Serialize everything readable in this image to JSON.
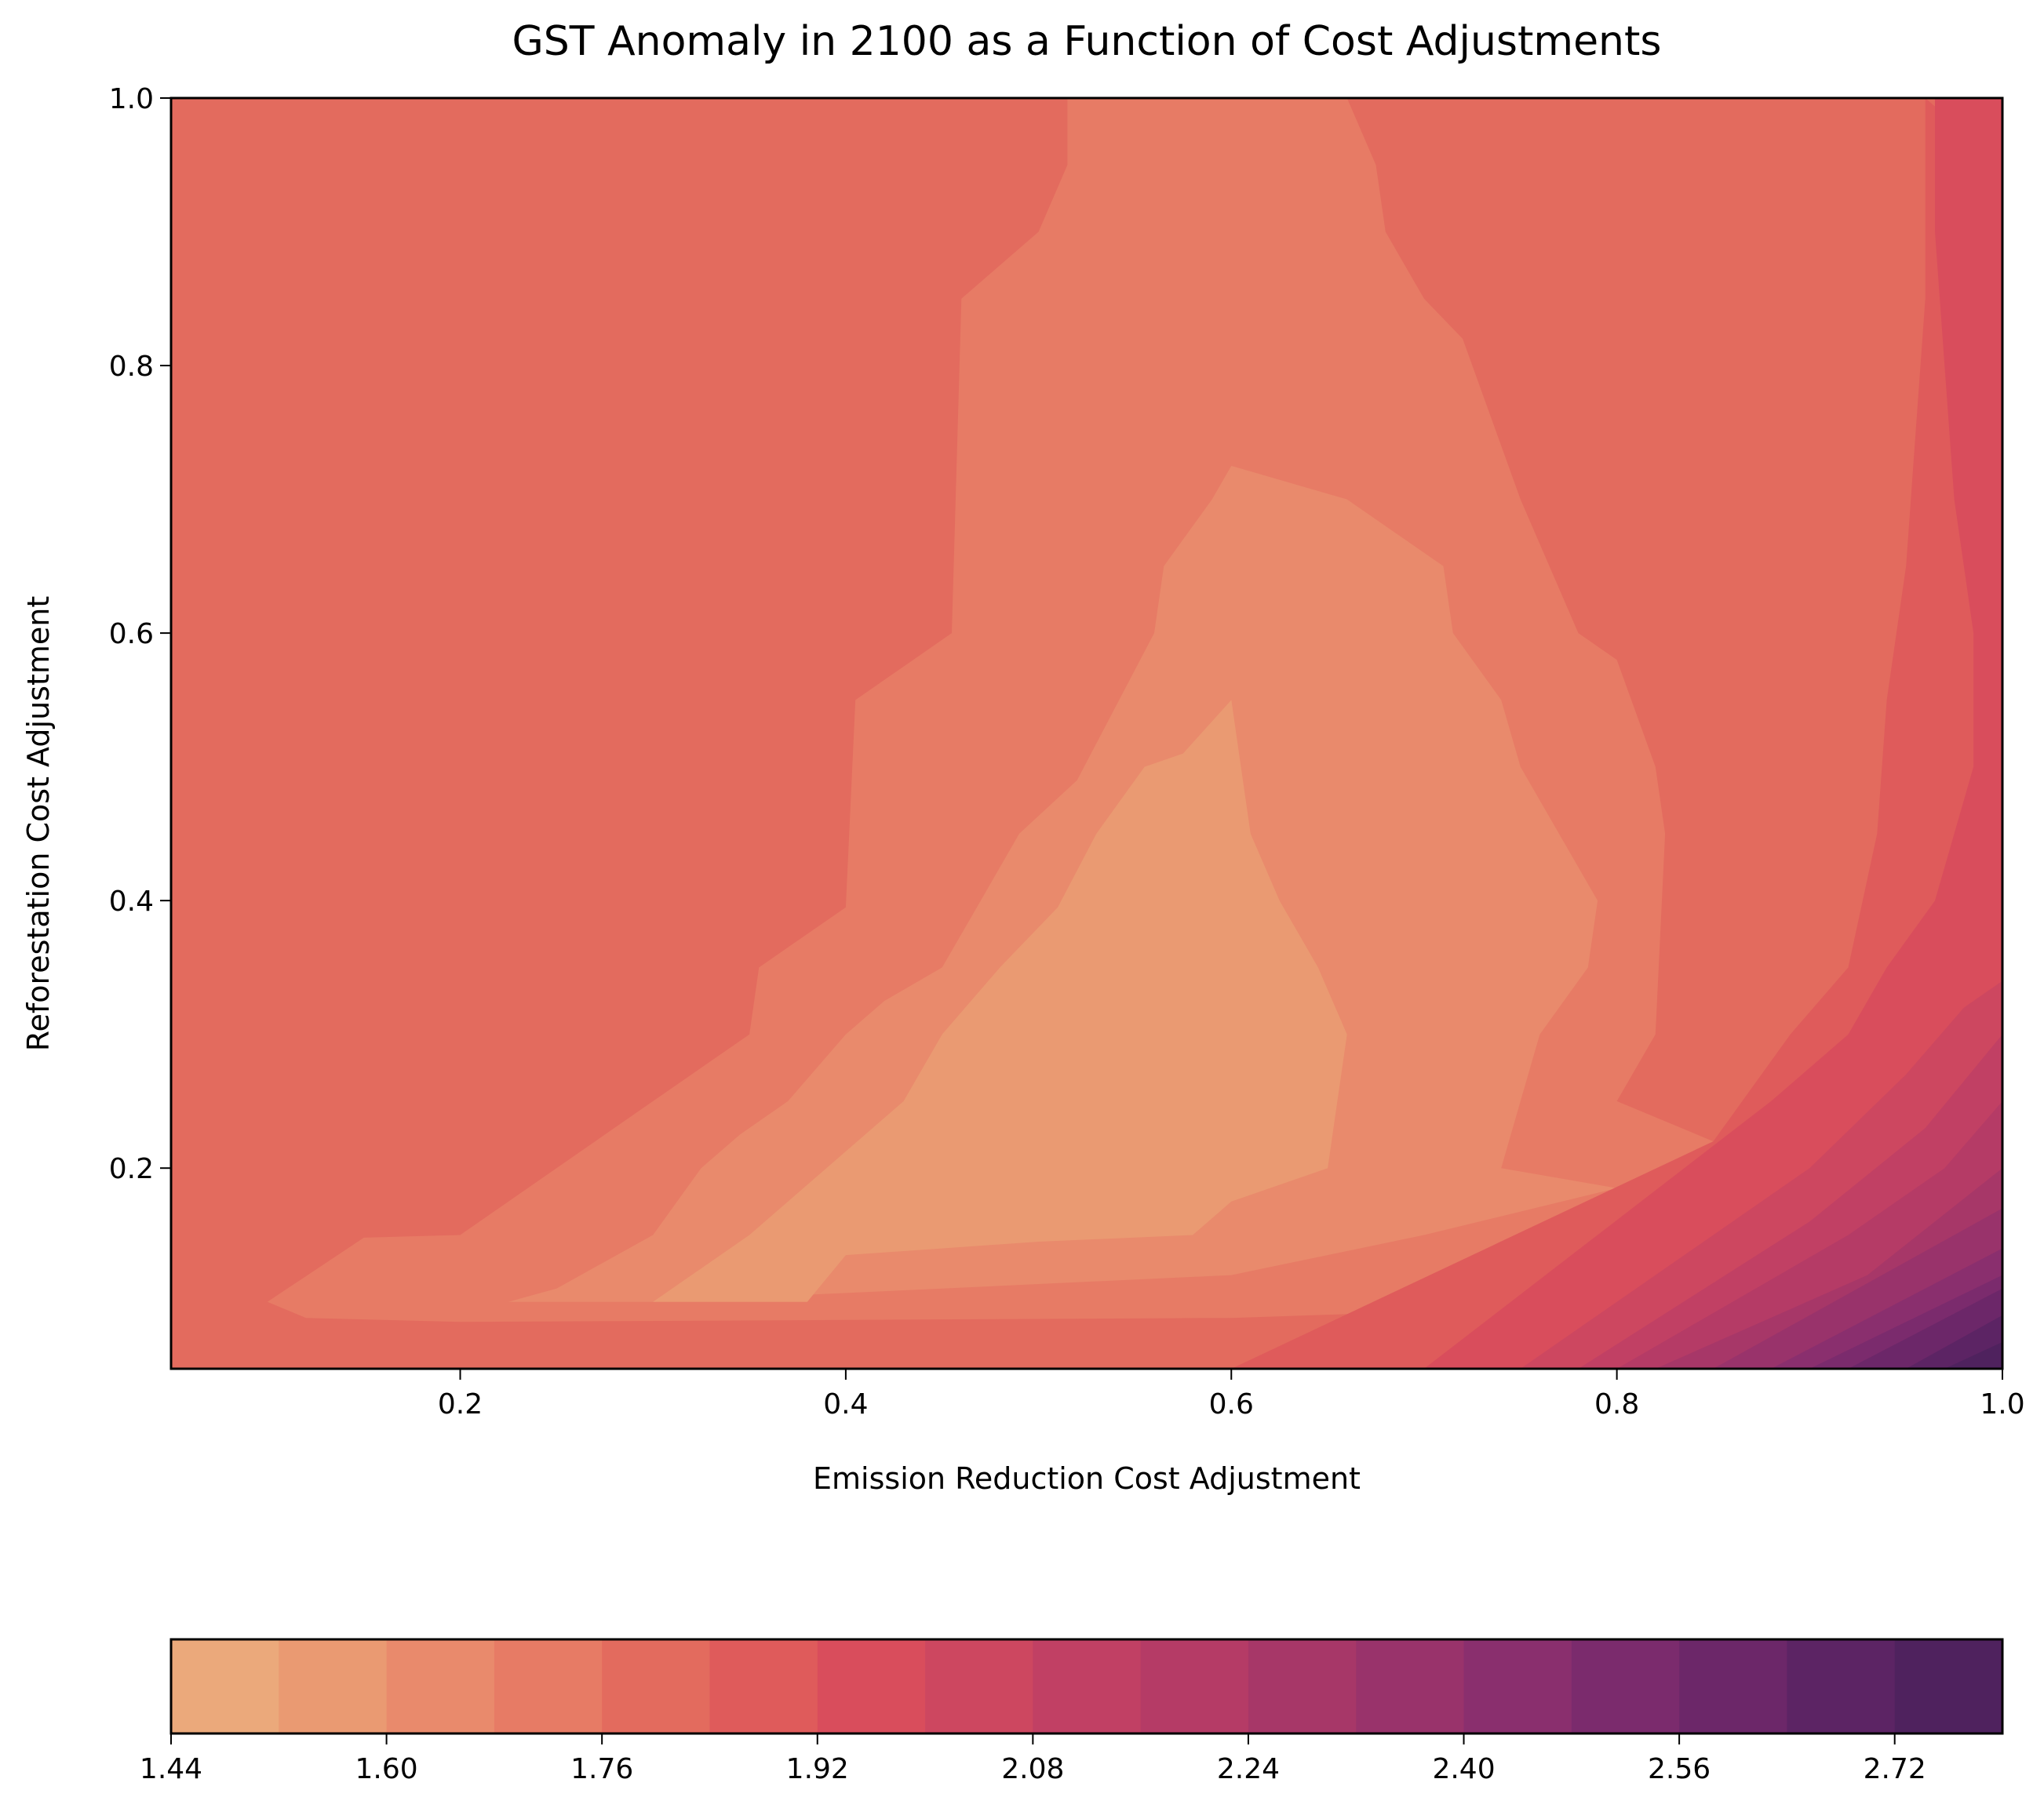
{
  "chart_data": {
    "type": "contourf",
    "title": "GST Anomaly in 2100 as a Function of Cost Adjustments",
    "xlabel": "Emission Reduction Cost Adjustment",
    "ylabel": "Reforestation Cost Adjustment",
    "xlim": [
      0.05,
      1.0
    ],
    "ylim": [
      0.05,
      1.0
    ],
    "x_ticks": [
      0.2,
      0.4,
      0.6,
      0.8,
      1.0
    ],
    "x_tick_labels": [
      "0.2",
      "0.4",
      "0.6",
      "0.8",
      "1.0"
    ],
    "y_ticks": [
      0.2,
      0.4,
      0.6,
      0.8,
      1.0
    ],
    "y_tick_labels": [
      "0.2",
      "0.4",
      "0.6",
      "0.8",
      "1.0"
    ],
    "colorbar": {
      "orientation": "horizontal",
      "levels": [
        1.44,
        1.52,
        1.6,
        1.68,
        1.76,
        1.84,
        1.92,
        2.0,
        2.08,
        2.16,
        2.24,
        2.32,
        2.4,
        2.48,
        2.56,
        2.64,
        2.72,
        2.8
      ],
      "tick_values": [
        1.44,
        1.6,
        1.76,
        1.92,
        2.08,
        2.24,
        2.4,
        2.56,
        2.72
      ],
      "tick_labels": [
        "1.44",
        "1.60",
        "1.76",
        "1.92",
        "2.08",
        "2.24",
        "2.40",
        "2.56",
        "2.72"
      ],
      "colors": [
        "#eba97b",
        "#ea9a72",
        "#e98a6c",
        "#e77b65",
        "#e36b5e",
        "#df5b5b",
        "#d94d5c",
        "#cd4760",
        "#c14064",
        "#b53b66",
        "#a73768",
        "#99336b",
        "#8a2f6e",
        "#7b2b6d",
        "#6c2769",
        "#5c2464",
        "#4f225e"
      ]
    },
    "contours": [
      {
        "level_index": 4,
        "points": [
          [
            0.05,
            0.05
          ],
          [
            0.05,
            1.0
          ],
          [
            1.0,
            1.0
          ],
          [
            1.0,
            0.05
          ]
        ]
      },
      {
        "level_index": 3,
        "points": [
          [
            0.1,
            0.1
          ],
          [
            0.15,
            0.148
          ],
          [
            0.2,
            0.15
          ],
          [
            0.3,
            0.25
          ],
          [
            0.35,
            0.3
          ],
          [
            0.355,
            0.35
          ],
          [
            0.4,
            0.395
          ],
          [
            0.405,
            0.55
          ],
          [
            0.455,
            0.6
          ],
          [
            0.46,
            0.85
          ],
          [
            0.5,
            0.9
          ],
          [
            0.515,
            0.95
          ],
          [
            0.515,
            1.0
          ],
          [
            0.66,
            1.0
          ],
          [
            0.675,
            0.95
          ],
          [
            0.68,
            0.9
          ],
          [
            0.7,
            0.85
          ],
          [
            0.72,
            0.82
          ],
          [
            0.75,
            0.7
          ],
          [
            0.78,
            0.6
          ],
          [
            0.8,
            0.58
          ],
          [
            0.82,
            0.5
          ],
          [
            0.825,
            0.45
          ],
          [
            0.82,
            0.3
          ],
          [
            0.8,
            0.25
          ],
          [
            0.85,
            0.22
          ],
          [
            0.9,
            0.17
          ],
          [
            0.95,
            0.13
          ],
          [
            0.85,
            0.1
          ],
          [
            0.6,
            0.088
          ],
          [
            0.2,
            0.085
          ],
          [
            0.12,
            0.088
          ]
        ]
      },
      {
        "level_index": 2,
        "points": [
          [
            0.225,
            0.1
          ],
          [
            0.25,
            0.11
          ],
          [
            0.3,
            0.15
          ],
          [
            0.325,
            0.2
          ],
          [
            0.345,
            0.225
          ],
          [
            0.37,
            0.25
          ],
          [
            0.4,
            0.3
          ],
          [
            0.42,
            0.325
          ],
          [
            0.45,
            0.35
          ],
          [
            0.47,
            0.4
          ],
          [
            0.49,
            0.45
          ],
          [
            0.52,
            0.49
          ],
          [
            0.56,
            0.6
          ],
          [
            0.565,
            0.65
          ],
          [
            0.59,
            0.7
          ],
          [
            0.6,
            0.725
          ],
          [
            0.66,
            0.7
          ],
          [
            0.71,
            0.65
          ],
          [
            0.715,
            0.6
          ],
          [
            0.74,
            0.55
          ],
          [
            0.75,
            0.5
          ],
          [
            0.77,
            0.45
          ],
          [
            0.79,
            0.4
          ],
          [
            0.785,
            0.35
          ],
          [
            0.76,
            0.3
          ],
          [
            0.75,
            0.25
          ],
          [
            0.74,
            0.2
          ],
          [
            0.8,
            0.185
          ],
          [
            0.7,
            0.15
          ],
          [
            0.6,
            0.12
          ],
          [
            0.45,
            0.11
          ],
          [
            0.3,
            0.1
          ]
        ]
      },
      {
        "level_index": 1,
        "points": [
          [
            0.3,
            0.1
          ],
          [
            0.35,
            0.15
          ],
          [
            0.39,
            0.2
          ],
          [
            0.43,
            0.25
          ],
          [
            0.45,
            0.3
          ],
          [
            0.48,
            0.35
          ],
          [
            0.51,
            0.395
          ],
          [
            0.53,
            0.45
          ],
          [
            0.555,
            0.5
          ],
          [
            0.575,
            0.51
          ],
          [
            0.6,
            0.55
          ],
          [
            0.605,
            0.5
          ],
          [
            0.61,
            0.45
          ],
          [
            0.625,
            0.4
          ],
          [
            0.645,
            0.35
          ],
          [
            0.66,
            0.3
          ],
          [
            0.655,
            0.25
          ],
          [
            0.65,
            0.2
          ],
          [
            0.6,
            0.175
          ],
          [
            0.58,
            0.15
          ],
          [
            0.5,
            0.145
          ],
          [
            0.4,
            0.135
          ],
          [
            0.38,
            0.1
          ]
        ]
      },
      {
        "level_index": 5,
        "points": [
          [
            1.0,
            0.95
          ],
          [
            1.0,
            0.05
          ],
          [
            0.6,
            0.05
          ],
          [
            0.85,
            0.22
          ],
          [
            0.89,
            0.3
          ],
          [
            0.92,
            0.35
          ],
          [
            0.935,
            0.45
          ],
          [
            0.94,
            0.55
          ],
          [
            0.95,
            0.65
          ],
          [
            0.955,
            0.75
          ],
          [
            0.96,
            0.85
          ],
          [
            0.96,
            0.95
          ],
          [
            0.96,
            1.0
          ]
        ]
      },
      {
        "level_index": 6,
        "points": [
          [
            1.0,
            1.0
          ],
          [
            1.0,
            0.05
          ],
          [
            0.7,
            0.05
          ],
          [
            0.88,
            0.25
          ],
          [
            0.92,
            0.3
          ],
          [
            0.94,
            0.35
          ],
          [
            0.965,
            0.4
          ],
          [
            0.975,
            0.45
          ],
          [
            0.985,
            0.5
          ],
          [
            0.985,
            0.6
          ],
          [
            0.98,
            0.65
          ],
          [
            0.975,
            0.7
          ],
          [
            0.97,
            0.8
          ],
          [
            0.965,
            0.9
          ],
          [
            0.965,
            1.0
          ]
        ]
      },
      {
        "level_index": 7,
        "points": [
          [
            1.0,
            0.95
          ],
          [
            1.0,
            0.05
          ],
          [
            0.75,
            0.05
          ],
          [
            0.9,
            0.2
          ],
          [
            0.95,
            0.27
          ],
          [
            0.98,
            0.32
          ],
          [
            1.0,
            0.34
          ]
        ]
      },
      {
        "level_index": 8,
        "points": [
          [
            1.0,
            0.3
          ],
          [
            1.0,
            0.05
          ],
          [
            0.78,
            0.05
          ],
          [
            0.9,
            0.16
          ],
          [
            0.96,
            0.23
          ]
        ]
      },
      {
        "level_index": 9,
        "points": [
          [
            1.0,
            0.25
          ],
          [
            1.0,
            0.05
          ],
          [
            0.8,
            0.05
          ],
          [
            0.92,
            0.15
          ],
          [
            0.97,
            0.2
          ]
        ]
      },
      {
        "level_index": 10,
        "points": [
          [
            1.0,
            0.2
          ],
          [
            1.0,
            0.05
          ],
          [
            0.82,
            0.05
          ],
          [
            0.93,
            0.12
          ]
        ]
      },
      {
        "level_index": 11,
        "points": [
          [
            1.0,
            0.17
          ],
          [
            1.0,
            0.05
          ],
          [
            0.85,
            0.05
          ]
        ]
      },
      {
        "level_index": 12,
        "points": [
          [
            1.0,
            0.14
          ],
          [
            1.0,
            0.05
          ],
          [
            0.88,
            0.05
          ]
        ]
      },
      {
        "level_index": 13,
        "points": [
          [
            1.0,
            0.12
          ],
          [
            1.0,
            0.05
          ],
          [
            0.9,
            0.05
          ]
        ]
      },
      {
        "level_index": 14,
        "points": [
          [
            1.0,
            0.11
          ],
          [
            1.0,
            0.05
          ],
          [
            0.92,
            0.05
          ]
        ]
      },
      {
        "level_index": 15,
        "points": [
          [
            1.0,
            0.09
          ],
          [
            1.0,
            0.05
          ],
          [
            0.95,
            0.05
          ]
        ]
      },
      {
        "level_index": 16,
        "points": [
          [
            1.0,
            0.07
          ],
          [
            1.0,
            0.05
          ],
          [
            0.97,
            0.05
          ]
        ]
      }
    ]
  }
}
